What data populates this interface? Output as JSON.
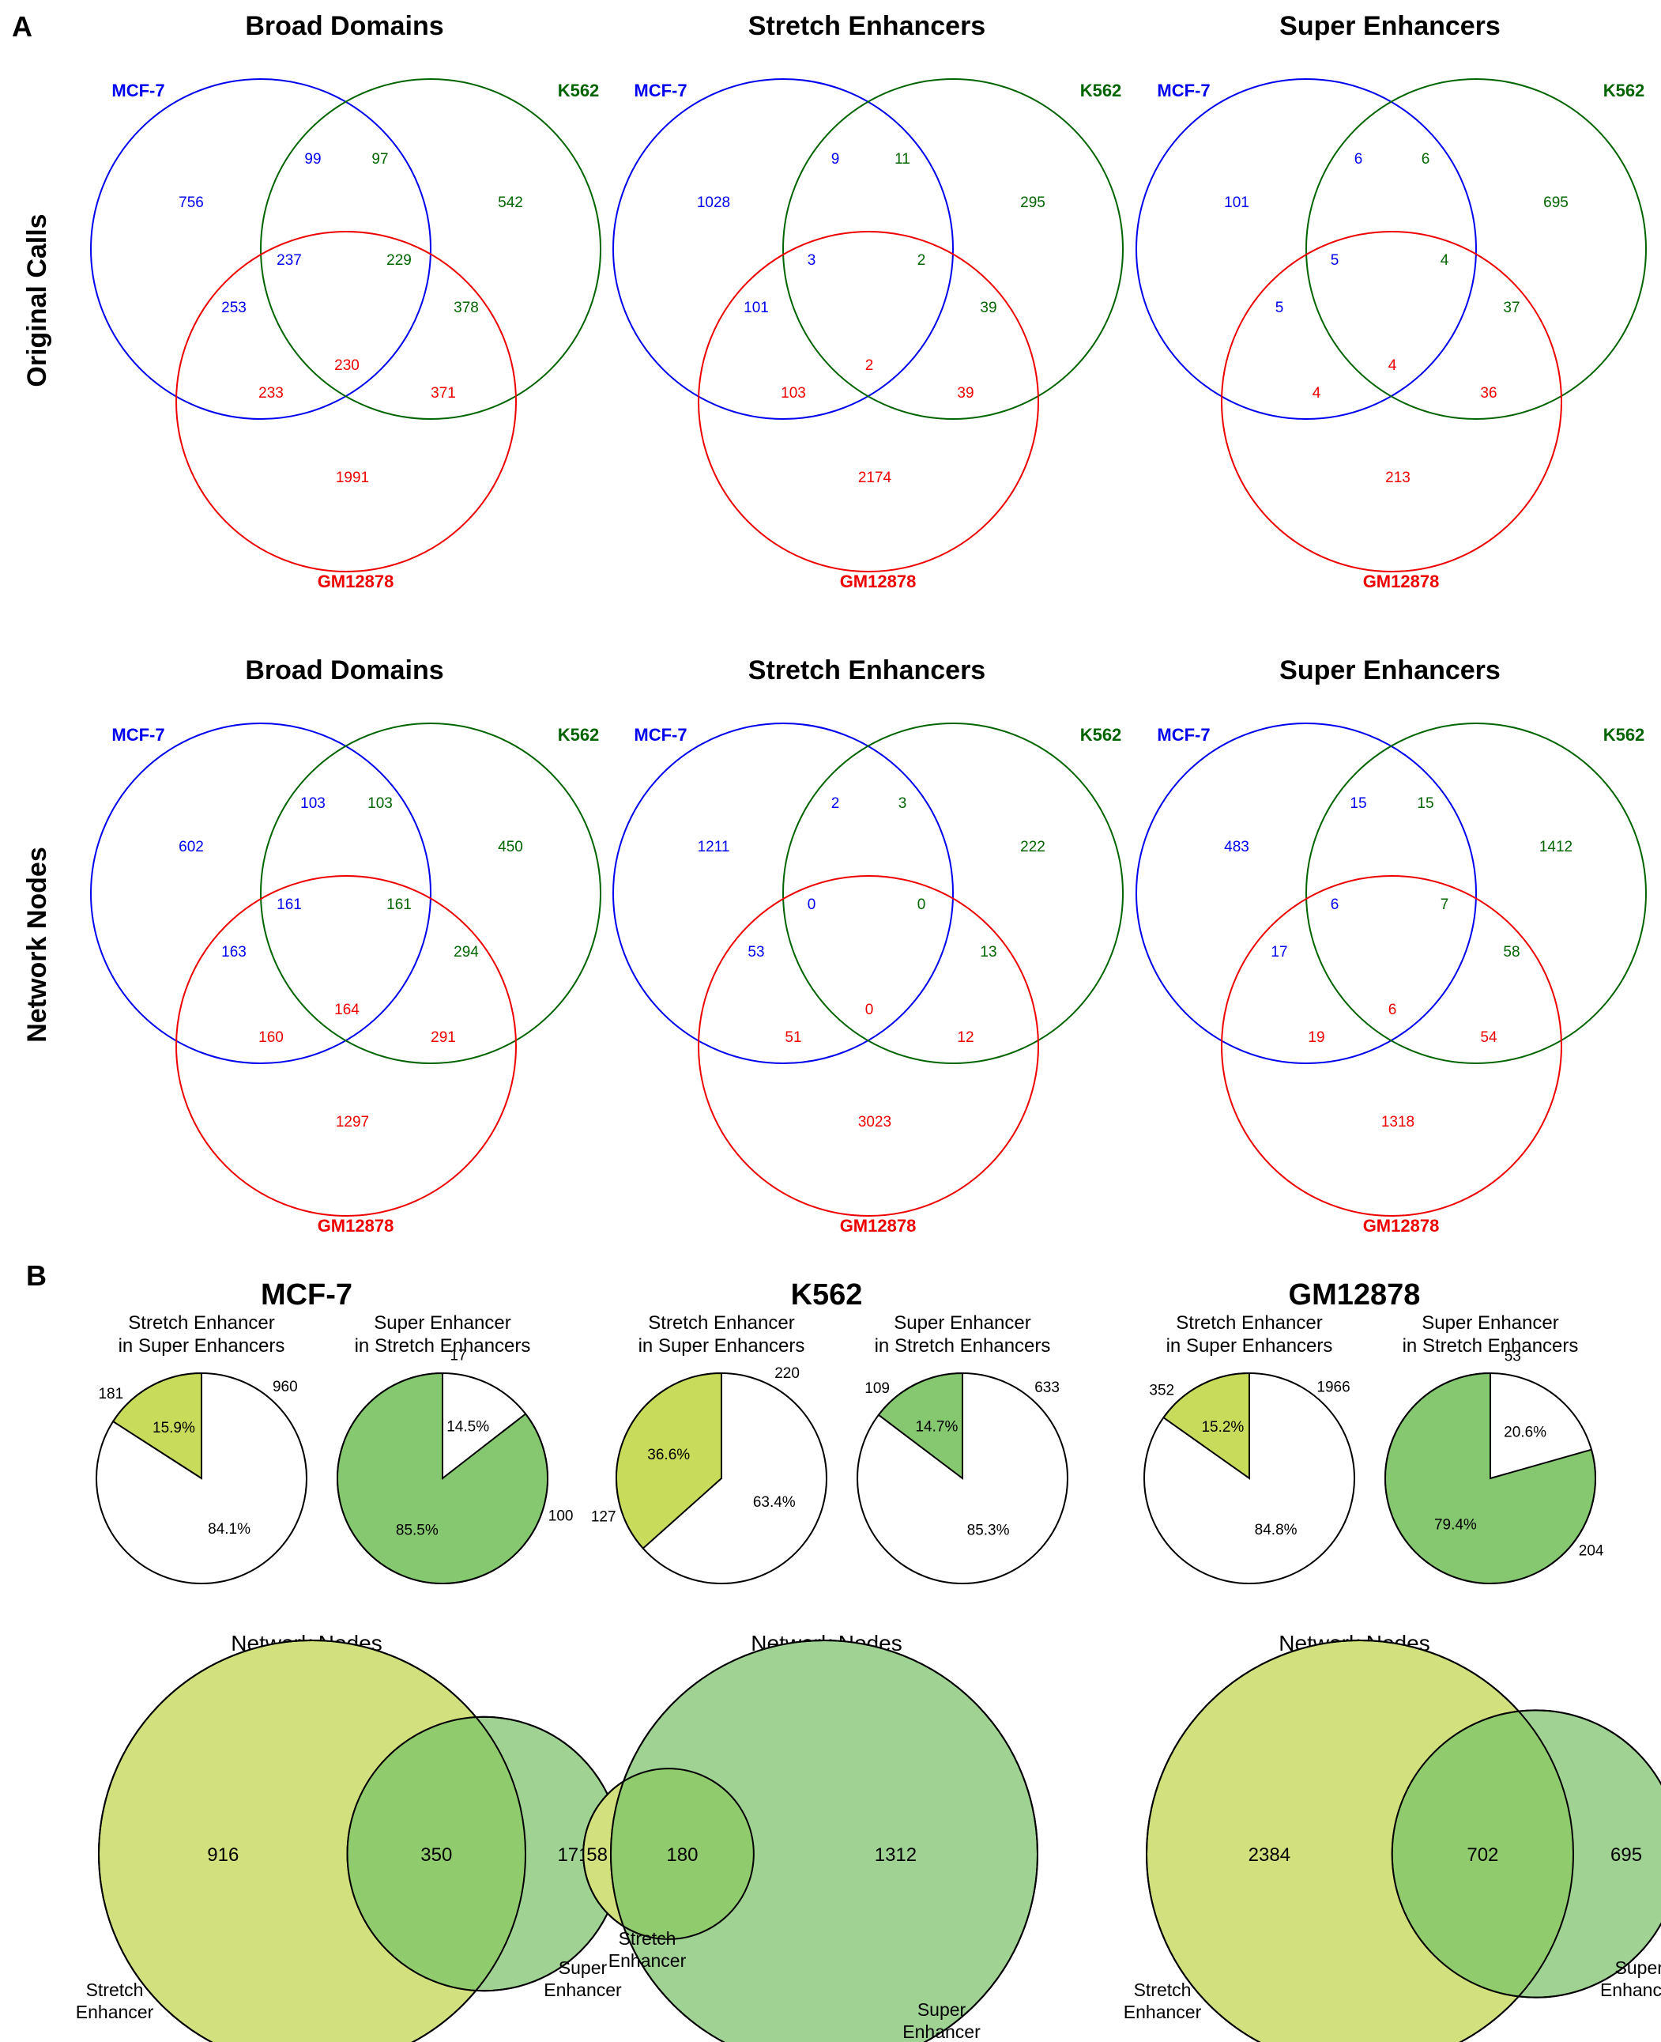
{
  "panel_a": {
    "letter": "A",
    "rows": [
      {
        "label": "Original Calls",
        "diagrams": [
          {
            "title": "Broad Domains",
            "sets": [
              "MCF-7",
              "K562",
              "GM12878"
            ],
            "counts": {
              "a": "756",
              "b": "542",
              "c": "1991",
              "ab1": "99",
              "ab2": "97",
              "ac1": "253",
              "ac2": "233",
              "bc1": "378",
              "bc2": "371",
              "abc1": "237",
              "abc2": "229",
              "abc3": "230"
            }
          },
          {
            "title": "Stretch Enhancers",
            "sets": [
              "MCF-7",
              "K562",
              "GM12878"
            ],
            "counts": {
              "a": "1028",
              "b": "295",
              "c": "2174",
              "ab1": "9",
              "ab2": "11",
              "ac1": "101",
              "ac2": "103",
              "bc1": "39",
              "bc2": "39",
              "abc1": "3",
              "abc2": "2",
              "abc3": "2"
            }
          },
          {
            "title": "Super Enhancers",
            "sets": [
              "MCF-7",
              "K562",
              "GM12878"
            ],
            "counts": {
              "a": "101",
              "b": "695",
              "c": "213",
              "ab1": "6",
              "ab2": "6",
              "ac1": "5",
              "ac2": "4",
              "bc1": "37",
              "bc2": "36",
              "abc1": "5",
              "abc2": "4",
              "abc3": "4"
            }
          }
        ]
      },
      {
        "label": "Network Nodes",
        "diagrams": [
          {
            "title": "Broad Domains",
            "sets": [
              "MCF-7",
              "K562",
              "GM12878"
            ],
            "counts": {
              "a": "602",
              "b": "450",
              "c": "1297",
              "ab1": "103",
              "ab2": "103",
              "ac1": "163",
              "ac2": "160",
              "bc1": "294",
              "bc2": "291",
              "abc1": "161",
              "abc2": "161",
              "abc3": "164"
            }
          },
          {
            "title": "Stretch Enhancers",
            "sets": [
              "MCF-7",
              "K562",
              "GM12878"
            ],
            "counts": {
              "a": "1211",
              "b": "222",
              "c": "3023",
              "ab1": "2",
              "ab2": "3",
              "ac1": "53",
              "ac2": "51",
              "bc1": "13",
              "bc2": "12",
              "abc1": "0",
              "abc2": "0",
              "abc3": "0"
            }
          },
          {
            "title": "Super Enhancers",
            "sets": [
              "MCF-7",
              "K562",
              "GM12878"
            ],
            "counts": {
              "a": "483",
              "b": "1412",
              "c": "1318",
              "ab1": "15",
              "ab2": "15",
              "ac1": "17",
              "ac2": "19",
              "bc1": "58",
              "bc2": "54",
              "abc1": "6",
              "abc2": "7",
              "abc3": "6"
            }
          }
        ]
      }
    ]
  },
  "panel_b": {
    "letter": "B",
    "cells": [
      {
        "title": "MCF-7",
        "pies": [
          {
            "title_lines": [
              "Stretch Enhancer",
              "in Super Enhancers"
            ],
            "fraction": 0.159,
            "pct_in": "15.9%",
            "pct_out": "84.1%",
            "num_in": "181",
            "num_out": "960",
            "fill": "#c9db5a"
          },
          {
            "title_lines": [
              "Super Enhancer",
              "in Stretch Enhancers"
            ],
            "fraction": 0.855,
            "pct_in": "85.5%",
            "pct_out": "14.5%",
            "num_in": "100",
            "num_out": "17",
            "fill": "#85c870"
          }
        ],
        "network": {
          "title": "Network Nodes",
          "left_only": "916",
          "overlap": "350",
          "right_only": "171",
          "left_label_lines": [
            "Stretch",
            "Enhancer"
          ],
          "right_label_lines": [
            "Super",
            "Enhancer"
          ]
        }
      },
      {
        "title": "K562",
        "pies": [
          {
            "title_lines": [
              "Stretch Enhancer",
              "in Super Enhancers"
            ],
            "fraction": 0.366,
            "pct_in": "36.6%",
            "pct_out": "63.4%",
            "num_in": "127",
            "num_out": "220",
            "fill": "#c9db5a"
          },
          {
            "title_lines": [
              "Super Enhancer",
              "in Stretch Enhancers"
            ],
            "fraction": 0.147,
            "pct_in": "14.7%",
            "pct_out": "85.3%",
            "num_in": "109",
            "num_out": "633",
            "fill": "#85c870"
          }
        ],
        "network": {
          "title": "Network Nodes",
          "left_only": "58",
          "overlap": "180",
          "right_only": "1312",
          "left_label_lines": [
            "Stretch",
            "Enhancer"
          ],
          "right_label_lines": [
            "Super",
            "Enhancer"
          ]
        }
      },
      {
        "title": "GM12878",
        "pies": [
          {
            "title_lines": [
              "Stretch Enhancer",
              "in Super Enhancers"
            ],
            "fraction": 0.152,
            "pct_in": "15.2%",
            "pct_out": "84.8%",
            "num_in": "352",
            "num_out": "1966",
            "fill": "#c9db5a"
          },
          {
            "title_lines": [
              "Super Enhancer",
              "in Stretch Enhancers"
            ],
            "fraction": 0.794,
            "pct_in": "79.4%",
            "pct_out": "20.6%",
            "num_in": "204",
            "num_out": "53",
            "fill": "#85c870"
          }
        ],
        "network": {
          "title": "Network Nodes",
          "left_only": "2384",
          "overlap": "702",
          "right_only": "695",
          "left_label_lines": [
            "Stretch",
            "Enhancer"
          ],
          "right_label_lines": [
            "Super",
            "Enhancer"
          ]
        }
      }
    ]
  },
  "colors": {
    "mcf7": "#0000ee",
    "k562": "#006400",
    "gm12878": "#ee0000",
    "stretch_fill": "#d2e07e",
    "super_fill": "#9fd293",
    "overlap_fill": "#90cb6e"
  }
}
